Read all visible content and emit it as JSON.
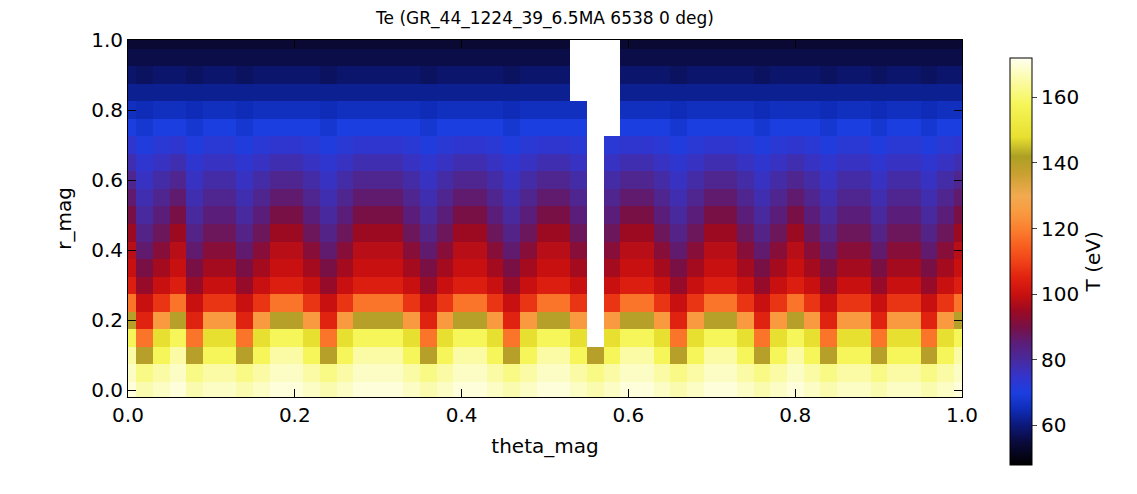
{
  "chart_data": {
    "type": "heatmap",
    "title": "Te (GR_44_1224_39_6.5MA 6538 0 deg)",
    "x_label": "theta_mag",
    "y_label": "r_mag",
    "xlim": [
      0,
      1
    ],
    "ylim": [
      -0.02,
      1
    ],
    "xticks": [
      {
        "value": 0,
        "label": "0.0"
      },
      {
        "value": 0.2,
        "label": "0.2"
      },
      {
        "value": 0.4,
        "label": "0.4"
      },
      {
        "value": 0.6,
        "label": "0.6"
      },
      {
        "value": 0.8,
        "label": "0.8"
      },
      {
        "value": 1,
        "label": "1.0"
      }
    ],
    "yticks": [
      {
        "value": 0,
        "label": "0.0"
      },
      {
        "value": 0.2,
        "label": "0.2"
      },
      {
        "value": 0.4,
        "label": "0.4"
      },
      {
        "value": 0.6,
        "label": "0.6"
      },
      {
        "value": 0.8,
        "label": "0.8"
      },
      {
        "value": 1,
        "label": "1.0"
      }
    ],
    "x": [
      0,
      0.02,
      0.04,
      0.06,
      0.08,
      0.1,
      0.12,
      0.14,
      0.16,
      0.18,
      0.2,
      0.22,
      0.24,
      0.26,
      0.28,
      0.3,
      0.32,
      0.34,
      0.36,
      0.38,
      0.4,
      0.42,
      0.44,
      0.46,
      0.48,
      0.5,
      0.52,
      0.54,
      0.56,
      0.58,
      0.6,
      0.62,
      0.64,
      0.66,
      0.68,
      0.7,
      0.72,
      0.74,
      0.76,
      0.78,
      0.8,
      0.82,
      0.84,
      0.86,
      0.88,
      0.9,
      0.92,
      0.94,
      0.96,
      0.98,
      1
    ],
    "y": [
      0,
      0.05,
      0.1,
      0.15,
      0.2,
      0.25,
      0.3,
      0.35,
      0.4,
      0.45,
      0.5,
      0.55,
      0.6,
      0.65,
      0.7,
      0.75,
      0.8,
      0.85,
      0.9,
      0.95,
      1
    ],
    "cells": [
      [
        170,
        166,
        168,
        170,
        166,
        168,
        168,
        166,
        168,
        170,
        170,
        168,
        166,
        168,
        170,
        170,
        170,
        168,
        166,
        168,
        170,
        170,
        168,
        166,
        168,
        170,
        170,
        168,
        166,
        168,
        170,
        170,
        168,
        166,
        168,
        170,
        170,
        168,
        166,
        168,
        170,
        168,
        166,
        168,
        168,
        166,
        168,
        168,
        166,
        168,
        170
      ],
      [
        168,
        162,
        165,
        168,
        162,
        165,
        165,
        162,
        165,
        168,
        168,
        165,
        162,
        165,
        168,
        168,
        168,
        165,
        162,
        165,
        168,
        168,
        165,
        162,
        165,
        168,
        168,
        165,
        162,
        165,
        168,
        168,
        165,
        162,
        165,
        168,
        168,
        165,
        162,
        165,
        168,
        165,
        162,
        165,
        165,
        162,
        165,
        165,
        162,
        165,
        168
      ],
      [
        165,
        140,
        158,
        165,
        140,
        158,
        158,
        140,
        158,
        165,
        165,
        158,
        140,
        158,
        165,
        165,
        165,
        158,
        140,
        158,
        165,
        165,
        158,
        140,
        158,
        165,
        165,
        158,
        140,
        158,
        165,
        165,
        158,
        140,
        158,
        165,
        165,
        158,
        140,
        158,
        165,
        158,
        140,
        158,
        158,
        140,
        158,
        158,
        140,
        158,
        165
      ],
      [
        158,
        118,
        148,
        158,
        118,
        148,
        148,
        118,
        148,
        158,
        158,
        148,
        118,
        148,
        158,
        158,
        158,
        148,
        118,
        148,
        158,
        158,
        148,
        118,
        148,
        158,
        158,
        148,
        null,
        148,
        158,
        158,
        148,
        118,
        148,
        158,
        158,
        148,
        118,
        148,
        158,
        148,
        118,
        148,
        148,
        118,
        148,
        148,
        118,
        148,
        158
      ],
      [
        140,
        105,
        125,
        140,
        105,
        125,
        125,
        105,
        125,
        140,
        140,
        125,
        105,
        125,
        140,
        140,
        140,
        125,
        105,
        125,
        140,
        140,
        125,
        105,
        125,
        140,
        140,
        125,
        null,
        125,
        140,
        140,
        125,
        105,
        125,
        140,
        140,
        125,
        105,
        125,
        140,
        125,
        105,
        125,
        125,
        105,
        125,
        125,
        105,
        125,
        140
      ],
      [
        118,
        100,
        108,
        118,
        100,
        108,
        108,
        100,
        108,
        118,
        118,
        108,
        100,
        108,
        118,
        118,
        118,
        108,
        100,
        108,
        118,
        118,
        108,
        100,
        108,
        118,
        118,
        108,
        null,
        108,
        118,
        118,
        108,
        100,
        108,
        118,
        118,
        108,
        100,
        108,
        118,
        108,
        100,
        108,
        108,
        100,
        108,
        108,
        100,
        108,
        118
      ],
      [
        104,
        94,
        100,
        104,
        94,
        100,
        100,
        94,
        100,
        104,
        104,
        100,
        94,
        100,
        104,
        104,
        104,
        100,
        94,
        100,
        104,
        104,
        100,
        94,
        100,
        104,
        104,
        100,
        null,
        100,
        104,
        104,
        100,
        94,
        100,
        104,
        104,
        100,
        94,
        100,
        104,
        100,
        94,
        100,
        100,
        94,
        100,
        100,
        94,
        100,
        104
      ],
      [
        100,
        90,
        96,
        100,
        90,
        96,
        96,
        90,
        96,
        100,
        100,
        96,
        90,
        96,
        100,
        100,
        100,
        96,
        90,
        96,
        100,
        100,
        96,
        90,
        96,
        100,
        100,
        96,
        null,
        96,
        100,
        100,
        96,
        90,
        96,
        100,
        100,
        96,
        90,
        96,
        100,
        96,
        90,
        96,
        96,
        90,
        96,
        96,
        90,
        96,
        100
      ],
      [
        98,
        86,
        92,
        98,
        86,
        92,
        92,
        86,
        92,
        98,
        98,
        92,
        86,
        92,
        98,
        98,
        98,
        92,
        86,
        92,
        98,
        98,
        92,
        86,
        92,
        98,
        98,
        92,
        null,
        92,
        98,
        98,
        92,
        86,
        92,
        98,
        98,
        92,
        86,
        92,
        98,
        92,
        86,
        92,
        92,
        86,
        92,
        92,
        86,
        92,
        98
      ],
      [
        95,
        83,
        88,
        95,
        83,
        88,
        88,
        83,
        88,
        95,
        95,
        88,
        83,
        88,
        95,
        95,
        95,
        88,
        83,
        88,
        95,
        95,
        88,
        83,
        88,
        95,
        95,
        88,
        null,
        88,
        95,
        95,
        88,
        83,
        88,
        95,
        95,
        88,
        83,
        88,
        95,
        88,
        83,
        88,
        88,
        83,
        88,
        88,
        83,
        88,
        95
      ],
      [
        90,
        80,
        85,
        90,
        80,
        85,
        85,
        80,
        85,
        90,
        90,
        85,
        80,
        85,
        90,
        90,
        90,
        85,
        80,
        85,
        90,
        90,
        85,
        80,
        85,
        90,
        90,
        85,
        null,
        85,
        90,
        90,
        85,
        80,
        85,
        90,
        90,
        85,
        80,
        85,
        90,
        85,
        80,
        85,
        85,
        80,
        85,
        85,
        80,
        85,
        90
      ],
      [
        86,
        78,
        82,
        86,
        78,
        82,
        82,
        78,
        82,
        86,
        86,
        82,
        78,
        82,
        86,
        86,
        86,
        82,
        78,
        82,
        86,
        86,
        82,
        78,
        82,
        86,
        86,
        82,
        null,
        82,
        86,
        86,
        82,
        78,
        82,
        86,
        86,
        82,
        78,
        82,
        86,
        82,
        78,
        82,
        82,
        78,
        82,
        82,
        78,
        82,
        86
      ],
      [
        82,
        76,
        79,
        82,
        76,
        79,
        79,
        76,
        79,
        82,
        82,
        79,
        76,
        79,
        82,
        82,
        82,
        79,
        76,
        79,
        82,
        82,
        79,
        76,
        79,
        82,
        82,
        79,
        null,
        79,
        82,
        82,
        79,
        76,
        79,
        82,
        82,
        79,
        76,
        79,
        82,
        79,
        76,
        79,
        79,
        76,
        79,
        79,
        76,
        79,
        82
      ],
      [
        78,
        74,
        76,
        78,
        74,
        76,
        76,
        74,
        76,
        78,
        78,
        76,
        74,
        76,
        78,
        78,
        78,
        76,
        74,
        76,
        78,
        78,
        76,
        74,
        76,
        78,
        78,
        76,
        null,
        76,
        78,
        78,
        76,
        74,
        76,
        78,
        78,
        76,
        74,
        76,
        78,
        76,
        74,
        76,
        76,
        74,
        76,
        76,
        74,
        76,
        78
      ],
      [
        74,
        71,
        73,
        74,
        71,
        73,
        73,
        71,
        73,
        74,
        74,
        73,
        71,
        73,
        74,
        74,
        74,
        73,
        71,
        73,
        74,
        74,
        73,
        71,
        73,
        74,
        74,
        73,
        null,
        73,
        74,
        74,
        73,
        71,
        73,
        74,
        74,
        73,
        71,
        73,
        74,
        73,
        71,
        73,
        73,
        71,
        73,
        73,
        71,
        73,
        74
      ],
      [
        70,
        68,
        70,
        70,
        68,
        70,
        70,
        68,
        70,
        70,
        70,
        70,
        68,
        70,
        70,
        70,
        70,
        70,
        68,
        70,
        70,
        70,
        70,
        68,
        70,
        70,
        70,
        70,
        null,
        null,
        70,
        70,
        70,
        68,
        70,
        70,
        70,
        70,
        68,
        70,
        70,
        70,
        68,
        70,
        70,
        68,
        70,
        70,
        68,
        70,
        70
      ],
      [
        66,
        65,
        66,
        66,
        65,
        66,
        66,
        65,
        66,
        66,
        66,
        66,
        65,
        66,
        66,
        66,
        66,
        66,
        65,
        66,
        66,
        66,
        66,
        65,
        66,
        66,
        66,
        66,
        null,
        null,
        66,
        66,
        66,
        65,
        66,
        66,
        66,
        66,
        65,
        66,
        66,
        66,
        65,
        66,
        66,
        65,
        66,
        66,
        65,
        66,
        66
      ],
      [
        62,
        62,
        62,
        62,
        62,
        62,
        62,
        62,
        62,
        62,
        62,
        62,
        62,
        62,
        62,
        62,
        62,
        62,
        62,
        62,
        62,
        62,
        62,
        62,
        62,
        62,
        62,
        null,
        null,
        null,
        62,
        62,
        62,
        62,
        62,
        62,
        62,
        62,
        62,
        62,
        62,
        62,
        62,
        62,
        62,
        62,
        62,
        62,
        62,
        62,
        62
      ],
      [
        59,
        58,
        59,
        59,
        58,
        59,
        59,
        58,
        59,
        59,
        59,
        59,
        58,
        59,
        59,
        59,
        59,
        59,
        58,
        59,
        59,
        59,
        59,
        58,
        59,
        59,
        59,
        null,
        null,
        null,
        59,
        59,
        59,
        58,
        59,
        59,
        59,
        59,
        58,
        59,
        59,
        59,
        58,
        59,
        59,
        58,
        59,
        59,
        58,
        59,
        59
      ],
      [
        56,
        56,
        56,
        56,
        56,
        56,
        56,
        56,
        56,
        56,
        56,
        56,
        56,
        56,
        56,
        56,
        56,
        56,
        56,
        56,
        56,
        56,
        56,
        56,
        56,
        56,
        56,
        null,
        null,
        null,
        56,
        56,
        56,
        56,
        56,
        56,
        56,
        56,
        56,
        56,
        56,
        56,
        56,
        56,
        56,
        56,
        56,
        56,
        56,
        56,
        56
      ],
      [
        54,
        54,
        54,
        54,
        54,
        54,
        54,
        54,
        54,
        54,
        54,
        54,
        54,
        54,
        54,
        54,
        54,
        54,
        54,
        54,
        54,
        54,
        54,
        54,
        54,
        54,
        54,
        null,
        null,
        null,
        54,
        54,
        54,
        54,
        54,
        54,
        54,
        54,
        54,
        54,
        54,
        54,
        54,
        54,
        54,
        54,
        54,
        54,
        54,
        54,
        54
      ]
    ],
    "colorbar": {
      "title": "T (eV)",
      "range": [
        48,
        172
      ],
      "ticks": [
        60,
        80,
        100,
        120,
        140,
        160
      ]
    },
    "grid": false
  }
}
